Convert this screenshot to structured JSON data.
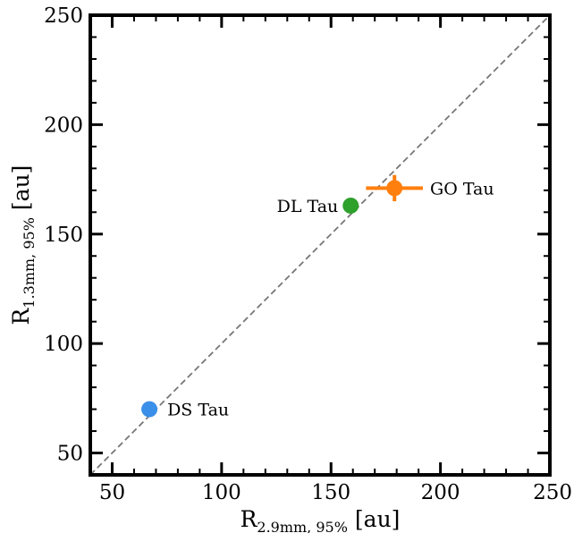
{
  "chart_data": {
    "type": "scatter",
    "title": "",
    "xlabel": {
      "main": "R",
      "sub": "2.9mm, 95%",
      "unit": "[au]"
    },
    "ylabel": {
      "main": "R",
      "sub": "1.3mm, 95%",
      "unit": "[au]"
    },
    "xlim": [
      40,
      250
    ],
    "ylim": [
      40,
      250
    ],
    "x_ticks": [
      50,
      100,
      150,
      200,
      250
    ],
    "y_ticks": [
      50,
      100,
      150,
      200,
      250
    ],
    "x_tick_labels": [
      "50",
      "100",
      "150",
      "200",
      "250"
    ],
    "y_tick_labels": [
      "50",
      "100",
      "150",
      "200",
      "250"
    ],
    "minor_tick_step": 10,
    "grid": false,
    "reference_line": {
      "type": "one-to-one",
      "style": "dashed",
      "color": "#777777"
    },
    "points": [
      {
        "label": "DS Tau",
        "x": 67,
        "y": 70,
        "color": "#3a8fe8",
        "xerr": 0,
        "yerr": 0
      },
      {
        "label": "DL Tau",
        "x": 159,
        "y": 163,
        "color": "#2ea02c",
        "xerr": 0,
        "yerr": 0
      },
      {
        "label": "GO Tau",
        "x": 179,
        "y": 171,
        "color": "#ff7f0e",
        "xerr": 13,
        "yerr": 6
      }
    ]
  }
}
